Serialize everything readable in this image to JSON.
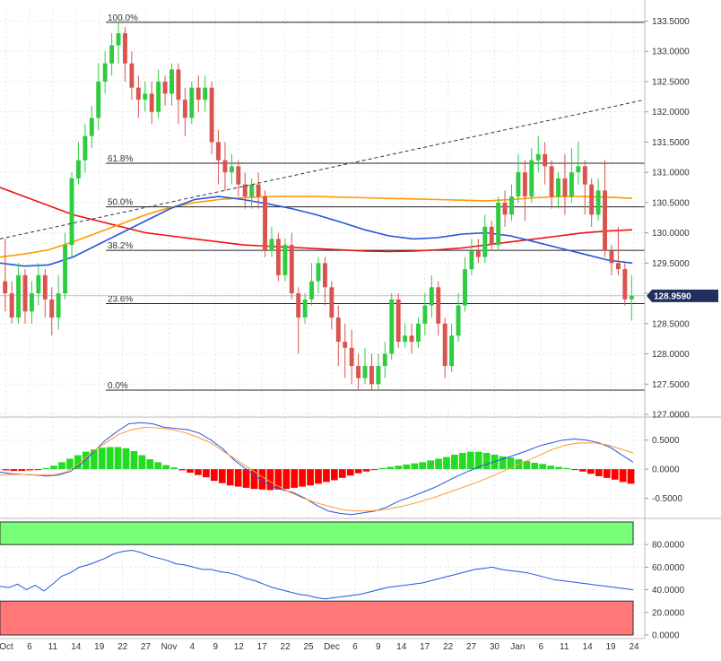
{
  "chart_data": [
    {
      "type": "candlestick",
      "panel": "price",
      "ylim": [
        127.0,
        133.7
      ],
      "y_ticks": [
        "133.5000",
        "133.0000",
        "132.5000",
        "132.0000",
        "131.5000",
        "131.0000",
        "130.5000",
        "130.0000",
        "129.5000",
        "129.0000",
        "128.5000",
        "128.0000",
        "127.5000",
        "127.0000"
      ],
      "last_price_label": "128.9590",
      "last_price": 128.959,
      "colors": {
        "up": "#2ecc40",
        "down": "#d9534f",
        "ma_blue": "#2255dd",
        "ma_red": "#ee1111",
        "ma_orange": "#ff9900",
        "price_tag": "#1f2f5e"
      },
      "fib_levels": [
        {
          "label": "100.0%",
          "value": 133.48
        },
        {
          "label": "61.8%",
          "value": 131.15
        },
        {
          "label": "50.0%",
          "value": 130.43
        },
        {
          "label": "38.2%",
          "value": 129.71
        },
        {
          "label": "23.6%",
          "value": 128.83
        },
        {
          "label": "0.0%",
          "value": 127.4
        }
      ],
      "candles": [
        [
          129.2,
          129.0,
          129.9,
          128.7
        ],
        [
          129.0,
          128.6,
          129.2,
          128.5
        ],
        [
          128.6,
          129.3,
          129.5,
          128.5
        ],
        [
          129.3,
          128.7,
          129.4,
          128.5
        ],
        [
          128.7,
          129.0,
          129.2,
          128.5
        ],
        [
          129.0,
          129.3,
          129.5,
          128.8
        ],
        [
          129.3,
          128.9,
          129.4,
          128.6
        ],
        [
          128.9,
          128.6,
          129.1,
          128.3
        ],
        [
          128.6,
          129.0,
          129.3,
          128.4
        ],
        [
          129.0,
          129.8,
          130.0,
          128.9
        ],
        [
          129.8,
          130.9,
          131.0,
          129.6
        ],
        [
          130.9,
          131.2,
          131.5,
          130.8
        ],
        [
          131.2,
          131.6,
          131.8,
          131.0
        ],
        [
          131.6,
          131.9,
          132.1,
          131.4
        ],
        [
          131.9,
          132.5,
          132.8,
          131.7
        ],
        [
          132.5,
          132.8,
          133.0,
          132.3
        ],
        [
          132.8,
          133.1,
          133.3,
          132.6
        ],
        [
          133.1,
          133.3,
          133.5,
          132.8
        ],
        [
          133.3,
          132.8,
          133.4,
          132.5
        ],
        [
          132.8,
          132.4,
          133.0,
          132.2
        ],
        [
          132.4,
          132.2,
          132.6,
          131.9
        ],
        [
          132.2,
          132.3,
          132.5,
          132.0
        ],
        [
          132.3,
          132.0,
          132.5,
          131.8
        ],
        [
          132.0,
          132.5,
          132.7,
          131.9
        ],
        [
          132.5,
          132.3,
          132.6,
          132.1
        ],
        [
          132.3,
          132.7,
          132.8,
          132.1
        ],
        [
          132.7,
          132.2,
          132.8,
          131.8
        ],
        [
          132.2,
          131.9,
          132.4,
          131.6
        ],
        [
          131.9,
          132.4,
          132.5,
          131.8
        ],
        [
          132.4,
          132.2,
          132.6,
          132.0
        ],
        [
          132.2,
          132.4,
          132.6,
          132.0
        ],
        [
          132.4,
          131.5,
          132.5,
          131.3
        ],
        [
          131.5,
          131.2,
          131.7,
          130.8
        ],
        [
          131.2,
          131.0,
          131.5,
          130.7
        ],
        [
          131.0,
          131.1,
          131.3,
          130.8
        ],
        [
          131.1,
          130.8,
          131.2,
          130.6
        ],
        [
          130.8,
          130.6,
          131.0,
          130.4
        ],
        [
          130.6,
          130.8,
          130.9,
          130.4
        ],
        [
          130.8,
          130.6,
          131.0,
          130.4
        ],
        [
          130.6,
          129.7,
          130.7,
          129.6
        ],
        [
          129.7,
          129.9,
          130.1,
          129.6
        ],
        [
          129.9,
          129.3,
          130.0,
          129.2
        ],
        [
          129.3,
          129.8,
          129.9,
          129.2
        ],
        [
          129.8,
          129.0,
          130.0,
          128.9
        ],
        [
          129.0,
          128.6,
          129.1,
          128.0
        ],
        [
          128.6,
          128.9,
          129.0,
          128.5
        ],
        [
          128.9,
          129.2,
          129.5,
          128.8
        ],
        [
          129.2,
          129.5,
          129.6,
          129.0
        ],
        [
          129.5,
          129.1,
          129.6,
          128.8
        ],
        [
          129.1,
          128.6,
          129.2,
          128.4
        ],
        [
          128.6,
          128.2,
          128.8,
          127.8
        ],
        [
          128.2,
          128.1,
          128.5,
          127.6
        ],
        [
          128.1,
          127.8,
          128.4,
          127.5
        ],
        [
          127.8,
          127.6,
          128.0,
          127.4
        ],
        [
          127.6,
          127.8,
          128.1,
          127.5
        ],
        [
          127.8,
          127.5,
          128.0,
          127.4
        ],
        [
          127.5,
          127.8,
          128.0,
          127.4
        ],
        [
          127.8,
          128.0,
          128.2,
          127.6
        ],
        [
          128.0,
          128.9,
          129.0,
          127.9
        ],
        [
          128.9,
          128.2,
          129.0,
          128.1
        ],
        [
          128.2,
          128.3,
          128.5,
          128.1
        ],
        [
          128.3,
          128.2,
          128.5,
          128.0
        ],
        [
          128.2,
          128.5,
          128.6,
          128.1
        ],
        [
          128.5,
          128.8,
          129.0,
          128.3
        ],
        [
          128.8,
          129.1,
          129.3,
          128.6
        ],
        [
          129.1,
          128.5,
          129.2,
          128.3
        ],
        [
          128.5,
          127.8,
          128.6,
          127.6
        ],
        [
          127.8,
          128.3,
          128.5,
          127.7
        ],
        [
          128.3,
          128.8,
          129.0,
          128.2
        ],
        [
          128.8,
          129.4,
          129.6,
          128.7
        ],
        [
          129.4,
          129.7,
          129.9,
          129.3
        ],
        [
          129.7,
          129.6,
          129.9,
          129.5
        ],
        [
          129.6,
          130.1,
          130.3,
          129.5
        ],
        [
          130.1,
          129.8,
          130.2,
          129.7
        ],
        [
          129.8,
          130.5,
          130.6,
          129.7
        ],
        [
          130.5,
          130.3,
          130.7,
          130.1
        ],
        [
          130.3,
          130.6,
          130.8,
          130.2
        ],
        [
          130.6,
          131.0,
          131.3,
          130.5
        ],
        [
          131.0,
          130.6,
          131.2,
          130.2
        ],
        [
          130.6,
          131.2,
          131.4,
          130.5
        ],
        [
          131.2,
          131.3,
          131.6,
          131.0
        ],
        [
          131.3,
          131.1,
          131.5,
          130.8
        ],
        [
          131.1,
          130.6,
          131.2,
          130.4
        ],
        [
          130.6,
          130.9,
          131.0,
          130.4
        ],
        [
          130.9,
          130.6,
          131.3,
          130.3
        ],
        [
          130.6,
          131.0,
          131.4,
          130.5
        ],
        [
          131.0,
          131.1,
          131.5,
          130.8
        ],
        [
          131.1,
          130.8,
          131.2,
          130.3
        ],
        [
          130.8,
          130.3,
          130.9,
          130.1
        ],
        [
          130.3,
          130.7,
          130.9,
          130.2
        ],
        [
          130.7,
          129.7,
          131.2,
          129.6
        ],
        [
          129.7,
          129.5,
          129.8,
          129.3
        ],
        [
          129.5,
          129.4,
          130.1,
          129.3
        ],
        [
          129.4,
          128.9,
          129.5,
          128.8
        ],
        [
          128.9,
          128.96,
          129.3,
          128.55
        ]
      ],
      "moving_averages": [
        {
          "color": "#ee1111",
          "values": [
            130.75,
            130.6,
            130.45,
            130.3,
            130.2,
            130.1,
            130.0,
            129.95,
            129.9,
            129.85,
            129.8,
            129.78,
            129.76,
            129.74,
            129.72,
            129.7,
            129.69,
            129.7,
            129.72,
            129.75,
            129.8,
            129.85,
            129.9,
            129.95,
            130.0,
            130.03,
            130.05
          ]
        },
        {
          "color": "#ff9900",
          "values": [
            129.6,
            129.65,
            129.72,
            129.85,
            130.0,
            130.15,
            130.3,
            130.42,
            130.5,
            130.55,
            130.58,
            130.6,
            130.6,
            130.6,
            130.59,
            130.58,
            130.57,
            130.56,
            130.55,
            130.54,
            130.53,
            130.55,
            130.58,
            130.6,
            130.6,
            130.59,
            130.57
          ]
        },
        {
          "color": "#2255dd",
          "values": [
            129.5,
            129.45,
            129.47,
            129.6,
            129.8,
            130.0,
            130.2,
            130.4,
            130.55,
            130.6,
            130.55,
            130.48,
            130.4,
            130.3,
            130.18,
            130.05,
            129.95,
            129.9,
            129.92,
            129.98,
            130.0,
            129.95,
            129.85,
            129.75,
            129.65,
            129.55,
            129.5
          ]
        }
      ],
      "trendline": {
        "from": 129.9,
        "to": 132.2
      }
    },
    {
      "type": "macd",
      "panel": "macd",
      "ylim": [
        -0.8,
        0.85
      ],
      "y_ticks": [
        "0.5000",
        "0.0000",
        "-0.5000"
      ],
      "colors": {
        "positive": "#22dd22",
        "negative": "#ff0000",
        "macd": "#2255dd",
        "signal": "#ff9933"
      },
      "histogram": [
        -0.02,
        -0.03,
        -0.03,
        -0.02,
        -0.01,
        0.02,
        0.06,
        0.12,
        0.18,
        0.24,
        0.3,
        0.34,
        0.37,
        0.38,
        0.38,
        0.36,
        0.31,
        0.24,
        0.17,
        0.12,
        0.07,
        0.03,
        -0.02,
        -0.06,
        -0.1,
        -0.14,
        -0.2,
        -0.24,
        -0.28,
        -0.3,
        -0.32,
        -0.34,
        -0.35,
        -0.36,
        -0.35,
        -0.34,
        -0.32,
        -0.3,
        -0.28,
        -0.25,
        -0.22,
        -0.19,
        -0.15,
        -0.11,
        -0.07,
        -0.04,
        -0.01,
        0.02,
        0.04,
        0.06,
        0.08,
        0.1,
        0.12,
        0.15,
        0.18,
        0.21,
        0.25,
        0.28,
        0.3,
        0.3,
        0.28,
        0.25,
        0.22,
        0.2,
        0.17,
        0.14,
        0.11,
        0.09,
        0.06,
        0.04,
        0.02,
        -0.01,
        -0.04,
        -0.08,
        -0.12,
        -0.15,
        -0.18,
        -0.22,
        -0.25
      ],
      "macd_line": [
        -0.05,
        -0.08,
        -0.09,
        -0.1,
        -0.12,
        -0.1,
        -0.04,
        0.1,
        0.3,
        0.5,
        0.65,
        0.78,
        0.8,
        0.78,
        0.72,
        0.7,
        0.68,
        0.62,
        0.5,
        0.35,
        0.15,
        0.0,
        -0.15,
        -0.28,
        -0.35,
        -0.4,
        -0.5,
        -0.62,
        -0.72,
        -0.76,
        -0.78,
        -0.75,
        -0.72,
        -0.65,
        -0.55,
        -0.48,
        -0.4,
        -0.32,
        -0.22,
        -0.12,
        -0.03,
        0.05,
        0.12,
        0.18,
        0.25,
        0.32,
        0.4,
        0.45,
        0.5,
        0.52,
        0.5,
        0.46,
        0.38,
        0.25,
        0.12
      ],
      "signal_line": [
        -0.1,
        -0.09,
        -0.09,
        -0.1,
        -0.1,
        -0.05,
        0.1,
        0.3,
        0.45,
        0.6,
        0.68,
        0.72,
        0.71,
        0.68,
        0.63,
        0.55,
        0.45,
        0.3,
        0.15,
        0.0,
        -0.15,
        -0.28,
        -0.4,
        -0.5,
        -0.58,
        -0.64,
        -0.7,
        -0.72,
        -0.72,
        -0.7,
        -0.66,
        -0.61,
        -0.55,
        -0.48,
        -0.4,
        -0.32,
        -0.24,
        -0.15,
        -0.05,
        0.05,
        0.15,
        0.25,
        0.35,
        0.42,
        0.45,
        0.45,
        0.42,
        0.35,
        0.28
      ]
    },
    {
      "type": "line",
      "panel": "rsi",
      "ylim": [
        0,
        100
      ],
      "y_ticks": [
        "80.0000",
        "60.0000",
        "40.0000",
        "20.0000",
        "0.0000"
      ],
      "overbought": 80,
      "oversold": 30,
      "colors": {
        "line": "#2255dd",
        "overbought_zone": "#77ff77",
        "oversold_zone": "#ff7777"
      },
      "values": [
        43,
        42,
        45,
        40,
        44,
        39,
        45,
        52,
        55,
        60,
        62,
        65,
        68,
        72,
        74,
        75,
        73,
        70,
        68,
        66,
        63,
        62,
        60,
        58,
        58,
        56,
        55,
        53,
        50,
        48,
        45,
        42,
        40,
        38,
        36,
        35,
        33,
        32,
        33,
        34,
        35,
        36,
        38,
        40,
        42,
        43,
        44,
        45,
        46,
        48,
        50,
        52,
        54,
        56,
        58,
        59,
        60,
        58,
        57,
        56,
        55,
        53,
        51,
        49,
        48,
        47,
        46,
        45,
        44,
        43,
        42,
        41,
        40
      ]
    }
  ],
  "x_axis": {
    "labels": [
      "Oct",
      "6",
      "11",
      "14",
      "19",
      "22",
      "27",
      "Nov",
      "4",
      "9",
      "12",
      "17",
      "22",
      "25",
      "Dec",
      "6",
      "9",
      "14",
      "17",
      "22",
      "27",
      "30",
      "Jan",
      "6",
      "11",
      "14",
      "19",
      "24"
    ]
  }
}
